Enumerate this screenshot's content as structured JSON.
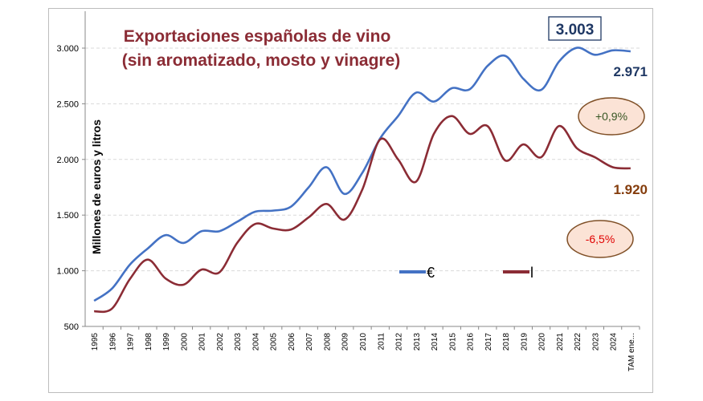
{
  "chart_data": {
    "type": "line",
    "title": "Exportaciones españolas de vino",
    "subtitle": "(sin aromatizado, mosto y vinagre)",
    "xlabel": "",
    "ylabel": "Millones de euros y litros",
    "ylim": [
      500,
      3250
    ],
    "yticks": [
      "500",
      "1.000",
      "1.500",
      "2.000",
      "2.500",
      "3.000"
    ],
    "ytick_values": [
      500,
      1000,
      1500,
      2000,
      2500,
      3000
    ],
    "grid": true,
    "legend_position": "bottom-center",
    "categories": [
      "1995",
      "1996",
      "1997",
      "1998",
      "1999",
      "2000",
      "2001",
      "2002",
      "2003",
      "2004",
      "2005",
      "2006",
      "2007",
      "2008",
      "2009",
      "2010",
      "2011",
      "2012",
      "2013",
      "2014",
      "2015",
      "2016",
      "2017",
      "2018",
      "2019",
      "2020",
      "2021",
      "2022",
      "2023",
      "2024",
      "TAM ene..."
    ],
    "series": [
      {
        "name": "€",
        "color": "#4472c4",
        "values": [
          730,
          840,
          1055,
          1200,
          1320,
          1250,
          1355,
          1355,
          1440,
          1530,
          1540,
          1575,
          1750,
          1930,
          1690,
          1880,
          2190,
          2390,
          2600,
          2520,
          2640,
          2630,
          2840,
          2930,
          2725,
          2625,
          2880,
          3003,
          2940,
          2980,
          2971
        ]
      },
      {
        "name": "l",
        "color": "#8b2c35",
        "values": [
          635,
          660,
          925,
          1100,
          930,
          875,
          1010,
          985,
          1250,
          1420,
          1380,
          1370,
          1480,
          1600,
          1460,
          1730,
          2180,
          2000,
          1800,
          2230,
          2390,
          2230,
          2300,
          1990,
          2135,
          2020,
          2300,
          2100,
          2020,
          1930,
          1920
        ]
      }
    ],
    "annotations": {
      "max_box": "3.003",
      "euro_last": "2.971",
      "litros_last": "1.920",
      "euro_change": "+0,9%",
      "litros_change": "-6,5%"
    },
    "colors": {
      "title": "#8b2c35",
      "euro_label": "#1f3864",
      "litros_label": "#843c0c",
      "bubble_fill": "#fbe3d6",
      "bubble_border": "#7f4f26",
      "pos_change": "#375623",
      "neg_change": "#e00000"
    }
  }
}
